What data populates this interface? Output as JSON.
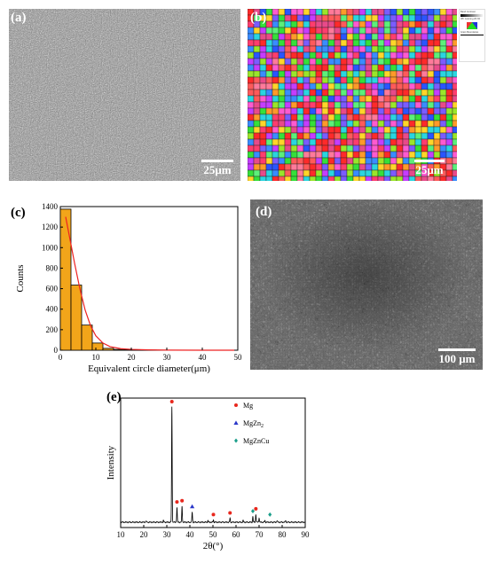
{
  "panels": {
    "a": {
      "label": "(a)",
      "scale": "25μm"
    },
    "b": {
      "label": "(b)",
      "scale": "25μm",
      "legend": {
        "title": "Band Contrast",
        "ipf": "IPF Coloring Z0 X0",
        "gb": "Grain Boundaries"
      }
    },
    "c": {
      "label": "(c)"
    },
    "d": {
      "label": "(d)",
      "scale": "100 μm"
    },
    "e": {
      "label": "(e)"
    }
  },
  "chart_data": [
    {
      "type": "bar",
      "panel": "c",
      "xlabel": "Equivalent circle diameter(μm)",
      "ylabel": "Counts",
      "xlim": [
        0,
        50
      ],
      "ylim": [
        0,
        1400
      ],
      "xticks": [
        0,
        10,
        20,
        30,
        40,
        50
      ],
      "yticks": [
        0,
        200,
        400,
        600,
        800,
        1000,
        1200,
        1400
      ],
      "bin_width": 3,
      "bins": [
        {
          "start": 0,
          "count": 1375
        },
        {
          "start": 3,
          "count": 635
        },
        {
          "start": 6,
          "count": 245
        },
        {
          "start": 9,
          "count": 70
        },
        {
          "start": 12,
          "count": 18
        },
        {
          "start": 15,
          "count": 8
        },
        {
          "start": 18,
          "count": 5
        },
        {
          "start": 21,
          "count": 3
        },
        {
          "start": 24,
          "count": 2
        },
        {
          "start": 27,
          "count": 1
        }
      ],
      "fit": {
        "type": "line",
        "points": [
          [
            1.5,
            1300
          ],
          [
            2.5,
            1120
          ],
          [
            4,
            850
          ],
          [
            5.5,
            600
          ],
          [
            7,
            390
          ],
          [
            8.5,
            240
          ],
          [
            10,
            140
          ],
          [
            12,
            70
          ],
          [
            14,
            35
          ],
          [
            17,
            15
          ],
          [
            20,
            8
          ],
          [
            25,
            3
          ],
          [
            30,
            1
          ],
          [
            40,
            0
          ],
          [
            49,
            0
          ]
        ]
      },
      "colors": {
        "bar": "#f2a51a",
        "fit": "#ee2222"
      },
      "grid": false
    },
    {
      "type": "line",
      "panel": "e",
      "xlabel": "2θ(°)",
      "ylabel": "Intensity",
      "xlim": [
        10,
        90
      ],
      "xticks": [
        10,
        20,
        30,
        40,
        50,
        60,
        70,
        80,
        90
      ],
      "y_ticks_shown": false,
      "peaks": [
        {
          "x": 21.0,
          "y": 0.012
        },
        {
          "x": 28.5,
          "y": 0.015
        },
        {
          "x": 32.2,
          "y": 1.0
        },
        {
          "x": 34.4,
          "y": 0.13
        },
        {
          "x": 36.6,
          "y": 0.14
        },
        {
          "x": 41.0,
          "y": 0.09
        },
        {
          "x": 47.8,
          "y": 0.015
        },
        {
          "x": 50.2,
          "y": 0.02
        },
        {
          "x": 57.4,
          "y": 0.035
        },
        {
          "x": 63.1,
          "y": 0.015
        },
        {
          "x": 67.3,
          "y": 0.05
        },
        {
          "x": 68.6,
          "y": 0.07
        },
        {
          "x": 70.0,
          "y": 0.04
        },
        {
          "x": 72.5,
          "y": 0.015
        },
        {
          "x": 77.8,
          "y": 0.015
        },
        {
          "x": 81.5,
          "y": 0.015
        }
      ],
      "markers": [
        {
          "x": 32.2,
          "phase": "Mg"
        },
        {
          "x": 34.4,
          "phase": "Mg"
        },
        {
          "x": 36.6,
          "phase": "Mg"
        },
        {
          "x": 41.0,
          "phase": "MgZn2"
        },
        {
          "x": 50.2,
          "phase": "Mg"
        },
        {
          "x": 57.4,
          "phase": "Mg"
        },
        {
          "x": 68.6,
          "phase": "Mg"
        },
        {
          "x": 67.3,
          "phase": "MgZnCu"
        },
        {
          "x": 74.7,
          "phase": "MgZnCu"
        }
      ],
      "legend": [
        {
          "phase": "Mg",
          "text": "Mg",
          "sub": "",
          "symbol": "circle",
          "color": "#e8271d"
        },
        {
          "phase": "MgZn2",
          "text": "MgZn",
          "sub": "2",
          "symbol": "triangle",
          "color": "#2a37c9"
        },
        {
          "phase": "MgZnCu",
          "text": "MgZnCu",
          "sub": "",
          "symbol": "diamond",
          "color": "#1a9e8a"
        }
      ],
      "legend_position": "top-right",
      "grid": false
    }
  ]
}
